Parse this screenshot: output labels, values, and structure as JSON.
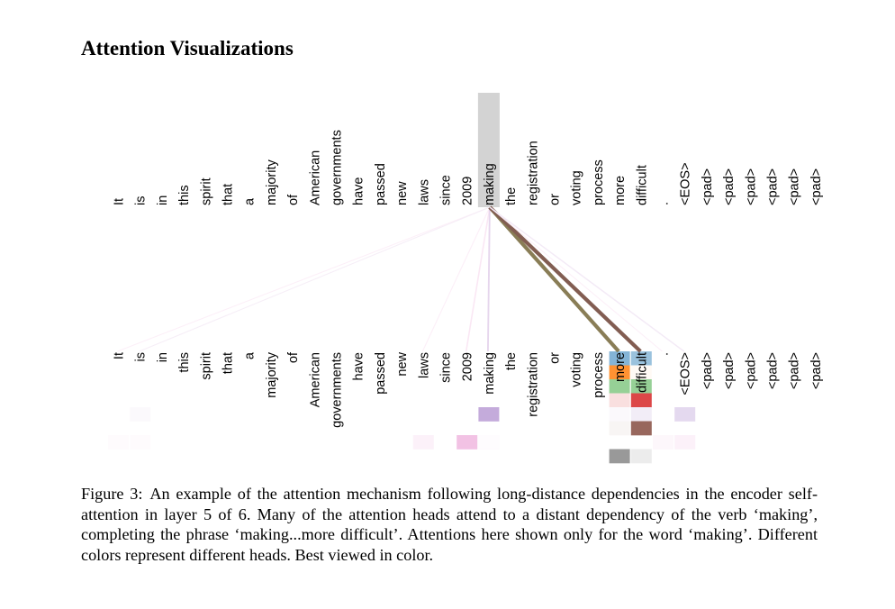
{
  "heading": "Attention Visualizations",
  "tokens": [
    "It",
    "is",
    "in",
    "this",
    "spirit",
    "that",
    "a",
    "majority",
    "of",
    "American",
    "governments",
    "have",
    "passed",
    "new",
    "laws",
    "since",
    "2009",
    "making",
    "the",
    "registration",
    "or",
    "voting",
    "process",
    "more",
    "difficult",
    ".",
    "<EOS>",
    "<pad>",
    "<pad>",
    "<pad>",
    "<pad>",
    "<pad>",
    "<pad>"
  ],
  "focus_token_index": 17,
  "heads": [
    {
      "color": "#1f77b4"
    },
    {
      "color": "#ff7f0e"
    },
    {
      "color": "#2ca02c"
    },
    {
      "color": "#d62728"
    },
    {
      "color": "#9467bd"
    },
    {
      "color": "#8c564b"
    },
    {
      "color": "#e377c2"
    },
    {
      "color": "#7f7f7f"
    }
  ],
  "attention": [
    {
      "head": 0,
      "target": 23,
      "weight": 0.55
    },
    {
      "head": 0,
      "target": 24,
      "weight": 0.45
    },
    {
      "head": 1,
      "target": 23,
      "weight": 0.85
    },
    {
      "head": 1,
      "target": 24,
      "weight": 0.04
    },
    {
      "head": 2,
      "target": 23,
      "weight": 0.5
    },
    {
      "head": 2,
      "target": 24,
      "weight": 0.5
    },
    {
      "head": 3,
      "target": 23,
      "weight": 0.15
    },
    {
      "head": 3,
      "target": 24,
      "weight": 0.85
    },
    {
      "head": 4,
      "target": 1,
      "weight": 0.04
    },
    {
      "head": 4,
      "target": 17,
      "weight": 0.55
    },
    {
      "head": 4,
      "target": 23,
      "weight": 0.04
    },
    {
      "head": 4,
      "target": 24,
      "weight": 0.12
    },
    {
      "head": 4,
      "target": 26,
      "weight": 0.25
    },
    {
      "head": 5,
      "target": 23,
      "weight": 0.06
    },
    {
      "head": 5,
      "target": 24,
      "weight": 0.9
    },
    {
      "head": 6,
      "target": 0,
      "weight": 0.03
    },
    {
      "head": 6,
      "target": 1,
      "weight": 0.03
    },
    {
      "head": 6,
      "target": 14,
      "weight": 0.1
    },
    {
      "head": 6,
      "target": 16,
      "weight": 0.45
    },
    {
      "head": 6,
      "target": 17,
      "weight": 0.12
    },
    {
      "head": 6,
      "target": 25,
      "weight": 0.06
    },
    {
      "head": 6,
      "target": 26,
      "weight": 0.1
    },
    {
      "head": 6,
      "target": 17,
      "weight": 0.02
    },
    {
      "head": 7,
      "target": 23,
      "weight": 0.8
    },
    {
      "head": 7,
      "target": 24,
      "weight": 0.15
    }
  ],
  "caption": {
    "label": "Figure 3:",
    "text": "An example of the attention mechanism following long-distance dependencies in the encoder self-attention in layer 5 of 6. Many of the attention heads attend to a distant dependency of the verb ‘making’, completing the phrase ‘making...more difficult’. Attentions here shown only for the word ‘making’. Different colors represent different heads. Best viewed in color."
  }
}
